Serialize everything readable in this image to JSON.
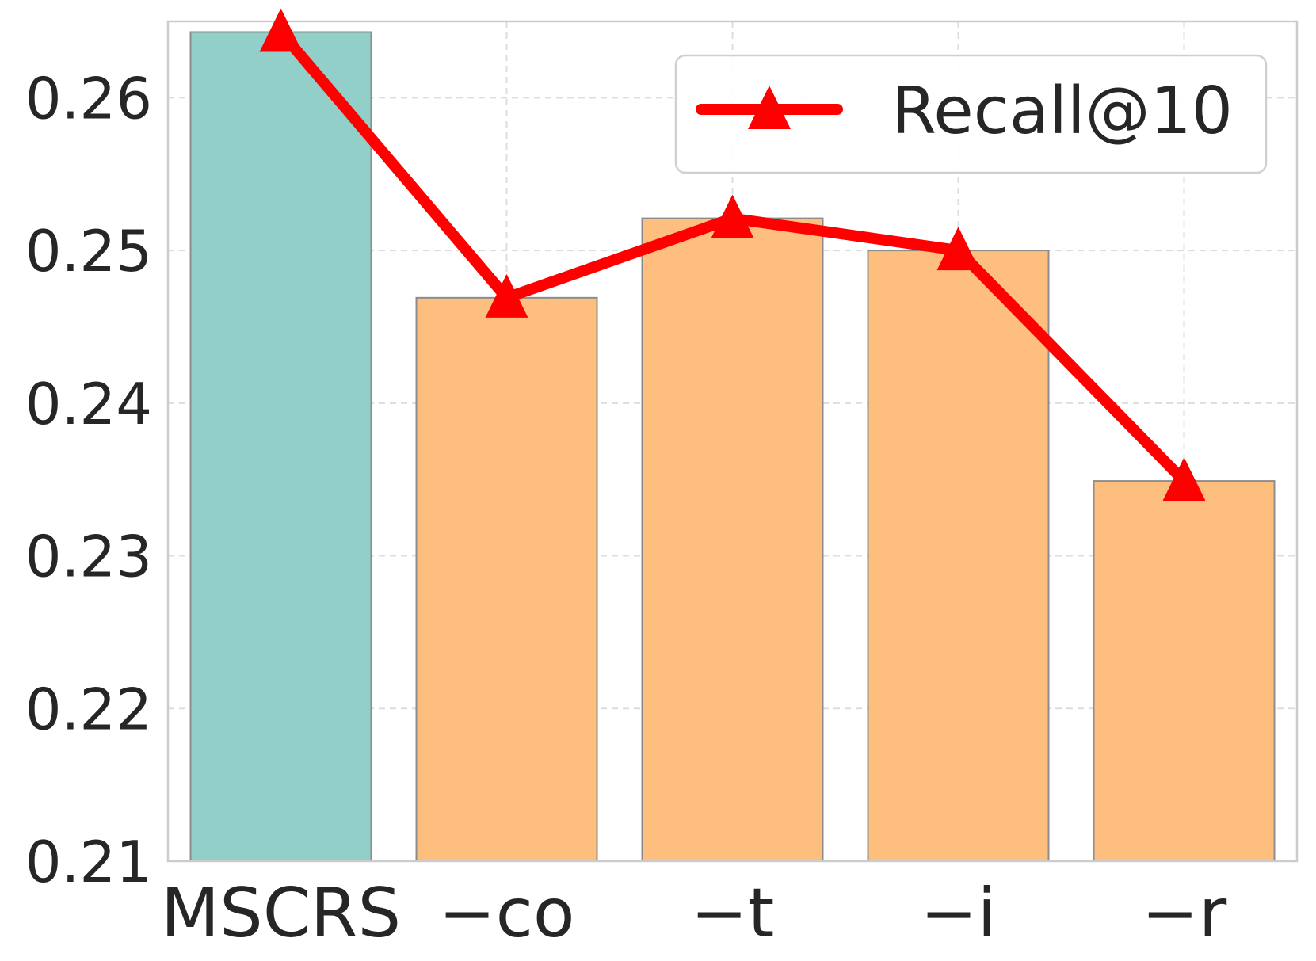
{
  "chart_data": {
    "type": "bar",
    "categories": [
      "MSCRS",
      "−co",
      "−t",
      "−i",
      "−r"
    ],
    "series": [
      {
        "name": "Recall@10",
        "values": [
          0.2643,
          0.2469,
          0.2521,
          0.25,
          0.2349
        ]
      }
    ],
    "bar_values": [
      0.2643,
      0.2469,
      0.2521,
      0.25,
      0.2349
    ],
    "bar_colors": [
      "#92cfc9",
      "#fdbe7e",
      "#fdbe7e",
      "#fdbe7e",
      "#fdbe7e"
    ],
    "line_color": "#ff0000",
    "ylim": [
      0.21,
      0.265
    ],
    "yticks": [
      0.21,
      0.22,
      0.23,
      0.24,
      0.25,
      0.26
    ],
    "ytick_labels": [
      "0.21",
      "0.22",
      "0.23",
      "0.24",
      "0.25",
      "0.26"
    ],
    "grid": true,
    "legend_position": "top-right",
    "xlabel": "",
    "ylabel": "",
    "title": ""
  }
}
